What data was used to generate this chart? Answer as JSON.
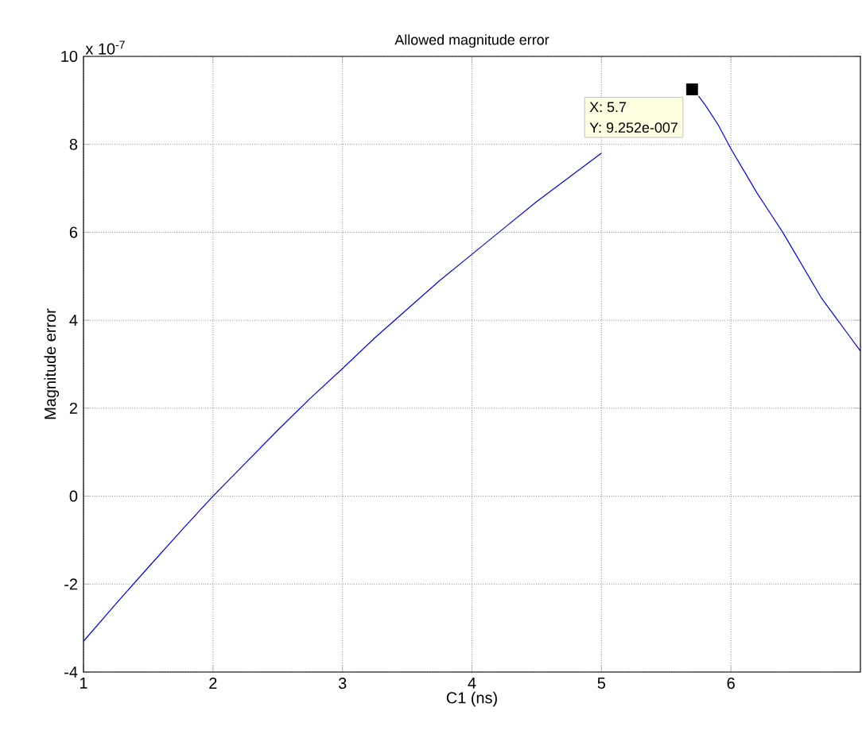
{
  "chart_data": {
    "type": "line",
    "title": "Allowed magnitude error",
    "xlabel": "C1 (ns)",
    "ylabel": "Magnitude error",
    "annotations": [
      "x 10$^{-7}$",
      "X: 5.7",
      "Y: 9.252e-007"
    ],
    "x": [
      1,
      1.25,
      1.5,
      1.75,
      2,
      2.25,
      2.5,
      2.75,
      3,
      3.25,
      3.5,
      3.75,
      4,
      4.25,
      4.5,
      4.75,
      5,
      5.25,
      5.5,
      5.6,
      5.7,
      5.75,
      5.8,
      5.9,
      6.0,
      6.1,
      6.2,
      6.3,
      6.4,
      6.5,
      6.6,
      6.7,
      6.8,
      6.9,
      7.0
    ],
    "series": [
      {
        "color": "#0000ff",
        "values": [
          -3.3,
          -2.45,
          -1.62,
          -0.8,
          0,
          0.75,
          1.5,
          2.22,
          2.9,
          3.6,
          4.25,
          4.9,
          5.5,
          6.1,
          6.7,
          7.25,
          7.8,
          null,
          null,
          null,
          null,
          9.1,
          8.9,
          8.45,
          7.9,
          7.4,
          6.9,
          6.45,
          6.0,
          5.5,
          5.0,
          4.5,
          4.1,
          3.7,
          3.3
        ]
      },
      {
        "type": "scatter",
        "marker": "square",
        "color": "#000000",
        "x": [
          5.7
        ],
        "values": [
          9.25
        ]
      }
    ],
    "xlim": [
      1,
      7
    ],
    "ylim": [
      -4,
      10
    ],
    "xticks": [
      1,
      2,
      3,
      4,
      5,
      6
    ],
    "yticks": [
      -4,
      -2,
      0,
      2,
      4,
      6,
      8,
      10
    ],
    "grid": true,
    "line_style": "solid",
    "marker": "none"
  }
}
